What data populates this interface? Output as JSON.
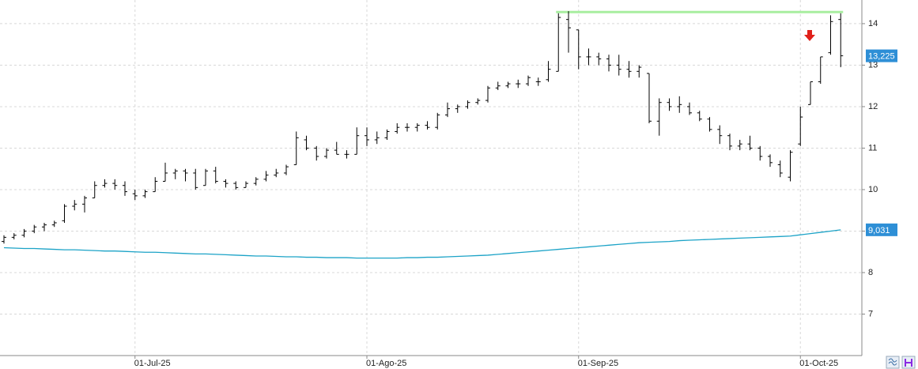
{
  "chart_data": {
    "type": "ohlc",
    "categories": [
      null,
      null,
      null,
      null,
      null,
      null,
      null,
      null,
      null,
      null,
      null,
      null,
      null,
      "01-Jul-25",
      null,
      null,
      null,
      null,
      null,
      null,
      null,
      null,
      null,
      null,
      null,
      null,
      null,
      null,
      null,
      null,
      null,
      null,
      null,
      null,
      null,
      null,
      "01-Ago-25",
      null,
      null,
      null,
      null,
      null,
      null,
      null,
      null,
      null,
      null,
      null,
      null,
      null,
      null,
      null,
      null,
      null,
      null,
      null,
      null,
      "01-Sep-25",
      null,
      null,
      null,
      null,
      null,
      null,
      null,
      null,
      null,
      null,
      null,
      null,
      null,
      null,
      null,
      null,
      null,
      null,
      null,
      null,
      null,
      "01-Oct-25",
      null,
      null,
      null,
      null
    ],
    "ohlc": {
      "color": "#000000",
      "open": [
        8.75,
        8.85,
        8.9,
        9.0,
        9.1,
        9.15,
        9.25,
        9.6,
        9.65,
        9.8,
        10.1,
        10.15,
        10.1,
        9.9,
        9.85,
        9.95,
        10.2,
        10.4,
        10.45,
        10.4,
        10.1,
        10.45,
        10.2,
        10.15,
        10.05,
        10.15,
        10.25,
        10.35,
        10.4,
        10.6,
        11.2,
        11.0,
        10.8,
        10.95,
        10.85,
        10.85,
        11.3,
        11.2,
        11.25,
        11.4,
        11.5,
        11.5,
        11.55,
        11.5,
        11.8,
        11.95,
        12.0,
        12.1,
        12.15,
        12.45,
        12.5,
        12.55,
        12.55,
        12.6,
        12.65,
        12.85,
        14.1,
        13.85,
        13.2,
        13.2,
        13.15,
        13.0,
        12.9,
        12.85,
        12.8,
        11.65,
        12.1,
        12.0,
        12.0,
        11.85,
        11.7,
        11.45,
        11.3,
        11.05,
        11.1,
        11.0,
        10.8,
        10.6,
        10.3,
        11.1,
        12.05,
        12.6,
        13.3,
        14.1
      ],
      "high": [
        8.9,
        8.95,
        9.05,
        9.15,
        9.2,
        9.25,
        9.65,
        9.75,
        9.85,
        10.2,
        10.25,
        10.25,
        10.2,
        10.0,
        10.0,
        10.3,
        10.65,
        10.5,
        10.5,
        10.5,
        10.5,
        10.55,
        10.25,
        10.2,
        10.2,
        10.3,
        10.45,
        10.5,
        10.6,
        11.4,
        11.3,
        11.05,
        11.0,
        11.15,
        10.95,
        11.5,
        11.5,
        11.4,
        11.45,
        11.6,
        11.6,
        11.6,
        11.65,
        11.85,
        12.1,
        12.05,
        12.15,
        12.2,
        12.5,
        12.6,
        12.6,
        12.65,
        12.75,
        12.7,
        13.1,
        14.25,
        14.3,
        13.85,
        13.4,
        13.3,
        13.25,
        13.25,
        13.1,
        13.0,
        12.8,
        12.2,
        12.2,
        12.25,
        12.1,
        11.9,
        11.75,
        11.55,
        11.35,
        11.2,
        11.3,
        11.05,
        10.85,
        10.7,
        10.95,
        12.0,
        12.6,
        13.2,
        14.2,
        14.25
      ],
      "low": [
        8.7,
        8.8,
        8.85,
        8.95,
        9.0,
        9.1,
        9.2,
        9.5,
        9.45,
        9.8,
        10.05,
        10.0,
        9.85,
        9.75,
        9.8,
        9.95,
        10.2,
        10.25,
        10.2,
        10.0,
        10.1,
        10.15,
        10.05,
        10.0,
        10.05,
        10.1,
        10.2,
        10.3,
        10.35,
        10.6,
        10.95,
        10.7,
        10.75,
        10.85,
        10.75,
        10.85,
        11.05,
        11.1,
        11.2,
        11.35,
        11.4,
        11.4,
        11.45,
        11.45,
        11.75,
        11.85,
        11.95,
        12.05,
        12.1,
        12.4,
        12.45,
        12.45,
        12.5,
        12.5,
        12.6,
        12.85,
        13.3,
        12.9,
        13.0,
        13.0,
        12.85,
        12.75,
        12.7,
        12.7,
        11.6,
        11.3,
        11.9,
        11.85,
        11.8,
        11.65,
        11.4,
        11.1,
        10.95,
        10.95,
        10.95,
        10.7,
        10.55,
        10.3,
        10.2,
        11.05,
        12.05,
        12.55,
        13.25,
        12.95
      ],
      "close": [
        8.85,
        8.9,
        9.0,
        9.1,
        9.15,
        9.2,
        9.6,
        9.65,
        9.8,
        10.1,
        10.15,
        10.1,
        9.95,
        9.85,
        9.95,
        10.2,
        10.4,
        10.45,
        10.4,
        10.05,
        10.45,
        10.2,
        10.15,
        10.05,
        10.15,
        10.25,
        10.35,
        10.4,
        10.55,
        11.25,
        11.0,
        10.8,
        10.95,
        10.85,
        10.85,
        11.3,
        11.2,
        11.25,
        11.4,
        11.5,
        11.5,
        11.55,
        11.5,
        11.8,
        11.95,
        12.0,
        12.1,
        12.15,
        12.45,
        12.5,
        12.55,
        12.55,
        12.7,
        12.6,
        12.9,
        14.15,
        13.9,
        13.2,
        13.2,
        13.15,
        13.0,
        12.9,
        12.85,
        12.95,
        11.65,
        12.1,
        12.0,
        12.05,
        11.85,
        11.7,
        11.45,
        11.3,
        11.05,
        11.1,
        11.0,
        10.8,
        10.65,
        10.4,
        10.9,
        11.75,
        12.6,
        13.2,
        14.05,
        13.225
      ],
      "last_label": "13,225",
      "label_color": "#2e8fd6"
    },
    "ma": {
      "color": "#1ca3c7",
      "values": [
        8.6,
        8.59,
        8.58,
        8.58,
        8.57,
        8.56,
        8.55,
        8.55,
        8.54,
        8.53,
        8.52,
        8.52,
        8.51,
        8.5,
        8.49,
        8.49,
        8.48,
        8.47,
        8.46,
        8.45,
        8.45,
        8.44,
        8.43,
        8.42,
        8.41,
        8.4,
        8.4,
        8.39,
        8.38,
        8.38,
        8.37,
        8.37,
        8.36,
        8.36,
        8.36,
        8.35,
        8.35,
        8.35,
        8.35,
        8.35,
        8.36,
        8.36,
        8.37,
        8.37,
        8.38,
        8.39,
        8.4,
        8.41,
        8.42,
        8.44,
        8.46,
        8.48,
        8.5,
        8.52,
        8.54,
        8.56,
        8.58,
        8.6,
        8.62,
        8.64,
        8.66,
        8.68,
        8.7,
        8.72,
        8.73,
        8.74,
        8.75,
        8.77,
        8.78,
        8.79,
        8.8,
        8.81,
        8.82,
        8.83,
        8.84,
        8.85,
        8.86,
        8.87,
        8.88,
        8.91,
        8.94,
        8.97,
        9.0,
        9.031
      ],
      "last_label": "9,031",
      "label_color": "#2e8fd6"
    },
    "hline": {
      "value": 14.28,
      "color": "#a8eea0"
    },
    "ylim": [
      6.0,
      14.57
    ],
    "yticks": [
      7,
      8,
      9,
      10,
      11,
      12,
      13,
      14
    ],
    "grid": true
  }
}
